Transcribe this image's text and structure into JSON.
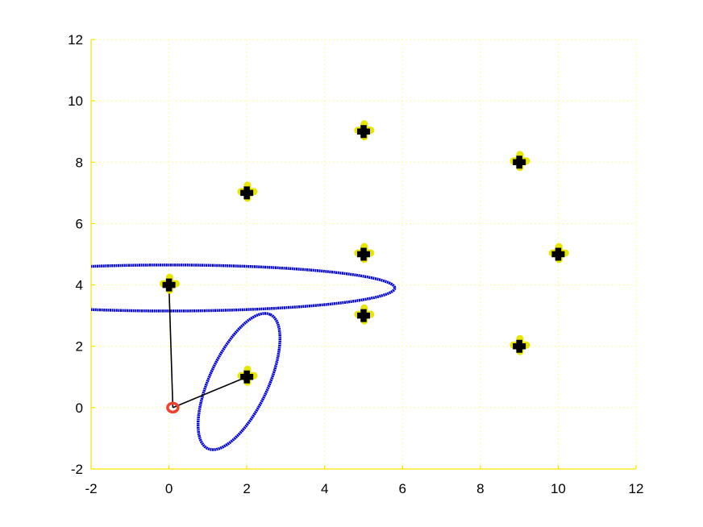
{
  "chart_data": {
    "type": "scatter",
    "title": "",
    "xlabel": "",
    "ylabel": "",
    "xlim": [
      -2,
      12
    ],
    "ylim": [
      -2,
      12
    ],
    "x_ticks": [
      -2,
      0,
      2,
      4,
      6,
      8,
      10,
      12
    ],
    "y_ticks": [
      -2,
      0,
      2,
      4,
      6,
      8,
      10,
      12
    ],
    "x_tick_labels": [
      "-2",
      "0",
      "2",
      "4",
      "6",
      "8",
      "10",
      "12"
    ],
    "y_tick_labels": [
      "-2",
      "0",
      "2",
      "4",
      "6",
      "8",
      "10",
      "12"
    ],
    "grid": true,
    "landmarks": {
      "marker": "plus",
      "color": "#000000",
      "edge_color": "#e6e600",
      "points": [
        {
          "x": 0,
          "y": 4
        },
        {
          "x": 2,
          "y": 1
        },
        {
          "x": 2,
          "y": 7
        },
        {
          "x": 5,
          "y": 9
        },
        {
          "x": 5,
          "y": 5
        },
        {
          "x": 5,
          "y": 3
        },
        {
          "x": 9,
          "y": 8
        },
        {
          "x": 9,
          "y": 2
        },
        {
          "x": 10,
          "y": 5
        }
      ]
    },
    "robot": {
      "x": 0.1,
      "y": 0,
      "color": "#f04030"
    },
    "observation_lines": [
      {
        "from": [
          0.1,
          0
        ],
        "to": [
          0,
          4
        ]
      },
      {
        "from": [
          0.1,
          0
        ],
        "to": [
          2,
          1
        ]
      }
    ],
    "ellipses": [
      {
        "cx": 0,
        "cy": 3.9,
        "rx": 5.8,
        "ry": 0.75,
        "angle_deg": 0,
        "color": "#0000dd"
      },
      {
        "cx": 1.8,
        "cy": 0.85,
        "rx": 1.9,
        "ry": 0.95,
        "angle_deg": -65,
        "color": "#0000dd"
      }
    ]
  }
}
